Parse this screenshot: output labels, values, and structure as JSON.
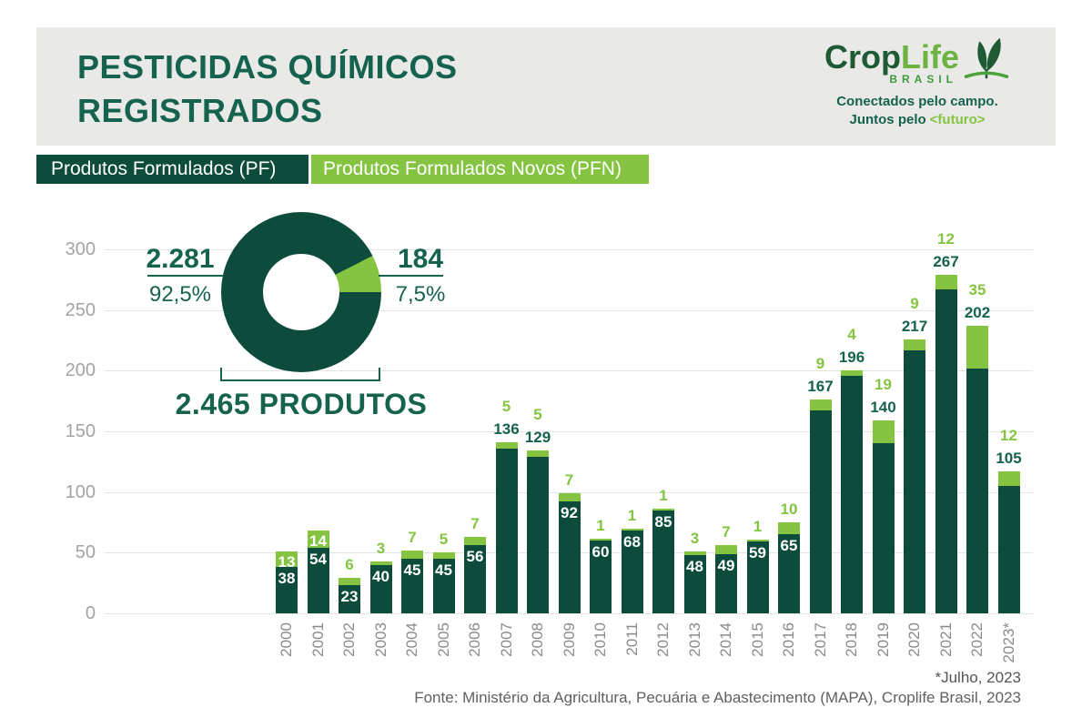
{
  "header": {
    "title_line1": "PESTICIDAS QUÍMICOS",
    "title_line2": "REGISTRADOS",
    "logo": {
      "brand_part1": "Crop",
      "brand_part2": "Life",
      "brand_sub": "BRASIL",
      "tagline_line1": "Conectados pelo campo.",
      "tagline_line2_prefix": "Juntos pelo",
      "tagline_line2_highlight": "<futuro>"
    }
  },
  "legend": {
    "pf_label": "Produtos Formulados (PF)",
    "pfn_label": "Produtos Formulados Novos (PFN)"
  },
  "colors": {
    "dark_green": "#0d4c3d",
    "light_green": "#84c441",
    "title_green": "#15624e",
    "header_bg": "#e9e9e7",
    "grid": "#e4e4e4",
    "ytick_text": "#a3a3a3",
    "xtick_text": "#8a8a8a",
    "white": "#ffffff"
  },
  "donut_labels": {
    "left_value": "2.281",
    "left_pct": "92,5%",
    "right_value": "184",
    "right_pct": "7,5%",
    "total_label": "2.465 PRODUTOS"
  },
  "footer": {
    "note": "*Julho, 2023",
    "source": "Fonte: Ministério da Agricultura, Pecuária e Abastecimento (MAPA), Croplife Brasil, 2023"
  },
  "chart_data": [
    {
      "type": "pie",
      "subtype": "donut",
      "labels": [
        "Produtos Formulados (PF)",
        "Produtos Formulados Novos (PFN)"
      ],
      "values": [
        2281,
        184
      ],
      "display_values": [
        "2.281",
        "184"
      ],
      "percent_labels": [
        "92,5%",
        "7,5%"
      ],
      "total": 2465,
      "total_label": "2.465 PRODUTOS",
      "slice_angles_deg": {
        "pfn_start": 63,
        "pfn_end": 90
      },
      "legend_position": "top"
    },
    {
      "type": "bar",
      "stacked": true,
      "categories": [
        "2000",
        "2001",
        "2002",
        "2003",
        "2004",
        "2005",
        "2006",
        "2007",
        "2008",
        "2009",
        "2010",
        "2011",
        "2012",
        "2013",
        "2014",
        "2015",
        "2016",
        "2017",
        "2018",
        "2019",
        "2020",
        "2021",
        "2022",
        "2023*"
      ],
      "series": [
        {
          "name": "Produtos Formulados (PF)",
          "color": "#0d4c3d",
          "values": [
            38,
            54,
            23,
            40,
            45,
            45,
            56,
            136,
            129,
            92,
            60,
            68,
            85,
            48,
            49,
            59,
            65,
            167,
            196,
            140,
            217,
            267,
            202,
            105
          ]
        },
        {
          "name": "Produtos Formulados Novos (PFN)",
          "color": "#84c441",
          "values": [
            13,
            14,
            6,
            3,
            7,
            5,
            7,
            5,
            5,
            7,
            1,
            1,
            1,
            3,
            7,
            1,
            10,
            9,
            4,
            19,
            9,
            12,
            35,
            12
          ]
        }
      ],
      "ylim": [
        0,
        300
      ],
      "yticks": [
        0,
        50,
        100,
        150,
        200,
        250,
        300
      ],
      "grid": true,
      "pf_label_inside": [
        true,
        true,
        true,
        true,
        true,
        true,
        true,
        false,
        false,
        true,
        true,
        true,
        true,
        true,
        true,
        true,
        true,
        false,
        false,
        false,
        false,
        false,
        false,
        false
      ],
      "pfn_label_inside": [
        true,
        true,
        false,
        false,
        false,
        false,
        false,
        false,
        false,
        false,
        false,
        false,
        false,
        false,
        false,
        false,
        false,
        false,
        false,
        false,
        false,
        false,
        false,
        false
      ]
    }
  ]
}
